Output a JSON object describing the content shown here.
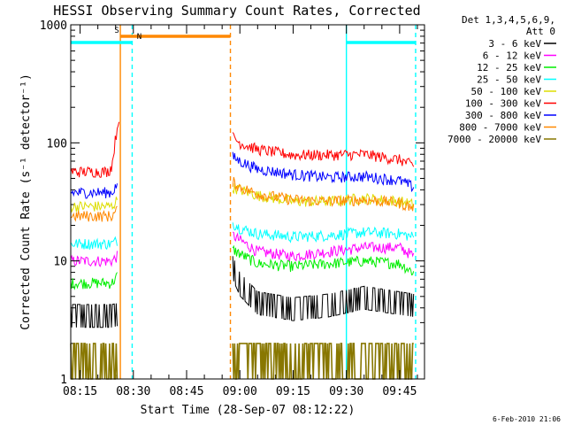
{
  "chart_data": {
    "type": "line",
    "title": "HESSI Observing Summary Count Rates, Corrected",
    "xlabel": "Start Time (28-Sep-07 08:12:22)",
    "ylabel": "Corrected Count Rate (s⁻¹ detector⁻¹)",
    "yscale": "log",
    "ylim": [
      1,
      1000
    ],
    "xlim": [
      "08:12:22",
      "09:52:00"
    ],
    "x_ticks": [
      "08:15",
      "08:30",
      "08:45",
      "09:00",
      "09:15",
      "09:30",
      "09:45"
    ],
    "y_ticks": [
      "1",
      "10",
      "100",
      "1000"
    ],
    "legend": {
      "position": "right",
      "header": [
        "Det 1,3,4,5,6,9,",
        "Att 0"
      ],
      "entries": [
        {
          "label": "3 - 6 keV",
          "color": "#000000"
        },
        {
          "label": "6 - 12 keV",
          "color": "#ff00ff"
        },
        {
          "label": "12 - 25 keV",
          "color": "#00ee00"
        },
        {
          "label": "25 - 50 keV",
          "color": "#00ffff"
        },
        {
          "label": "50 - 100 keV",
          "color": "#dddd00"
        },
        {
          "label": "100 - 300 keV",
          "color": "#ff0000"
        },
        {
          "label": "300 - 800 keV",
          "color": "#0000ff"
        },
        {
          "label": "800 - 7000 keV",
          "color": "#ff8800"
        },
        {
          "label": "7000 - 20000 keV",
          "color": "#887700"
        }
      ]
    },
    "flags": [
      {
        "label": "S",
        "color": "#ff8800",
        "start": "08:26:20",
        "end": "08:57:20"
      },
      {
        "label": "N",
        "color": "#00ffff",
        "start": "08:12:22",
        "end": "08:29:40"
      },
      {
        "label": "",
        "color": "#00ffff",
        "start": "09:30:00",
        "end": "09:49:30"
      }
    ],
    "markers": [
      {
        "time": "08:26:20",
        "color": "#ff8800",
        "style": "solid"
      },
      {
        "time": "08:29:40",
        "color": "#00ffff",
        "style": "dashed"
      },
      {
        "time": "08:57:20",
        "color": "#ff8800",
        "style": "dashed"
      },
      {
        "time": "09:30:00",
        "color": "#00ffff",
        "style": "solid"
      },
      {
        "time": "09:49:30",
        "color": "#00ffff",
        "style": "dashed"
      }
    ],
    "series": [
      {
        "name": "3 - 6 keV",
        "color": "#000000",
        "segments": [
          {
            "x": [
              "08:12:22",
              "08:24:00",
              "08:25:30"
            ],
            "y": [
              3.5,
              3.5,
              3.6
            ]
          },
          {
            "x": [
              "08:58:00",
              "09:00:00",
              "09:05:00",
              "09:15:00",
              "09:25:00",
              "09:35:00",
              "09:49:00"
            ],
            "y": [
              9.0,
              6.5,
              4.5,
              4.0,
              4.3,
              5.0,
              4.3
            ]
          }
        ]
      },
      {
        "name": "6 - 12 keV",
        "color": "#ff00ff",
        "segments": [
          {
            "x": [
              "08:12:22",
              "08:24:00",
              "08:25:30"
            ],
            "y": [
              10,
              10,
              11
            ]
          },
          {
            "x": [
              "08:58:00",
              "09:00:00",
              "09:05:00",
              "09:15:00",
              "09:25:00",
              "09:35:00",
              "09:45:00",
              "09:49:00"
            ],
            "y": [
              16.5,
              15,
              12,
              11,
              12,
              13,
              13,
              11
            ]
          }
        ]
      },
      {
        "name": "12 - 25 keV",
        "color": "#00ee00",
        "segments": [
          {
            "x": [
              "08:12:22",
              "08:24:00",
              "08:25:30"
            ],
            "y": [
              6.5,
              6.5,
              7.5
            ]
          },
          {
            "x": [
              "08:58:00",
              "09:00:00",
              "09:05:00",
              "09:15:00",
              "09:25:00",
              "09:35:00",
              "09:45:00",
              "09:49:00"
            ],
            "y": [
              12.5,
              11.5,
              9.5,
              9,
              9.5,
              10,
              9.5,
              8
            ]
          }
        ]
      },
      {
        "name": "25 - 50 keV",
        "color": "#00ffff",
        "segments": [
          {
            "x": [
              "08:12:22",
              "08:24:00",
              "08:25:30"
            ],
            "y": [
              14,
              14,
              15
            ]
          },
          {
            "x": [
              "08:58:00",
              "09:00:00",
              "09:05:00",
              "09:15:00",
              "09:25:00",
              "09:35:00",
              "09:45:00",
              "09:49:00"
            ],
            "y": [
              21,
              19,
              17,
              16,
              16.5,
              17.5,
              17,
              16
            ]
          }
        ]
      },
      {
        "name": "50 - 100 keV",
        "color": "#dddd00",
        "segments": [
          {
            "x": [
              "08:12:22",
              "08:24:00",
              "08:25:30"
            ],
            "y": [
              29,
              29,
              33
            ]
          },
          {
            "x": [
              "08:58:00",
              "09:05:00",
              "09:15:00",
              "09:25:00",
              "09:35:00",
              "09:45:00",
              "09:49:00"
            ],
            "y": [
              42,
              36,
              32,
              32,
              34,
              32,
              30
            ]
          }
        ]
      },
      {
        "name": "100 - 300 keV",
        "color": "#ff0000",
        "segments": [
          {
            "x": [
              "08:12:22",
              "08:23:00",
              "08:24:00",
              "08:25:00",
              "08:26:00"
            ],
            "y": [
              57,
              57,
              65,
              110,
              170
            ]
          },
          {
            "x": [
              "08:58:00",
              "09:00:00",
              "09:05:00",
              "09:15:00",
              "09:25:00",
              "09:35:00",
              "09:45:00",
              "09:49:00"
            ],
            "y": [
              112,
              100,
              88,
              79,
              79,
              80,
              72,
              64
            ]
          }
        ]
      },
      {
        "name": "300 - 800 keV",
        "color": "#0000ff",
        "segments": [
          {
            "x": [
              "08:12:22",
              "08:24:00",
              "08:25:30"
            ],
            "y": [
              38,
              38,
              45
            ]
          },
          {
            "x": [
              "08:58:00",
              "09:00:00",
              "09:05:00",
              "09:15:00",
              "09:25:00",
              "09:35:00",
              "09:45:00",
              "09:49:00"
            ],
            "y": [
              76,
              70,
              60,
              54,
              51,
              52,
              48,
              42
            ]
          }
        ]
      },
      {
        "name": "800 - 7000 keV",
        "color": "#ff8800",
        "segments": [
          {
            "x": [
              "08:12:22",
              "08:24:00",
              "08:25:30"
            ],
            "y": [
              24,
              24,
              27
            ]
          },
          {
            "x": [
              "08:58:00",
              "09:00:00",
              "09:05:00",
              "09:15:00",
              "09:25:00",
              "09:35:00",
              "09:45:00",
              "09:49:00"
            ],
            "y": [
              47,
              42,
              37,
              33,
              32,
              33,
              31,
              28
            ]
          }
        ]
      },
      {
        "name": "7000 - 20000 keV",
        "color": "#887700",
        "segments": [
          {
            "x": [
              "08:12:22",
              "08:24:00",
              "08:25:30"
            ],
            "y": [
              1.6,
              1.6,
              1.6
            ]
          },
          {
            "x": [
              "08:58:00",
              "09:15:00",
              "09:49:00"
            ],
            "y": [
              1.5,
              1.5,
              1.6
            ]
          }
        ]
      }
    ]
  },
  "footer": {
    "date_stamp": "6-Feb-2010 21:06"
  }
}
